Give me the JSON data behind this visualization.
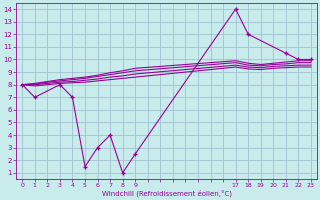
{
  "bg_color": "#c8ecec",
  "line_color": "#990099",
  "grid_color": "#99bbcc",
  "xlabel": "Windchill (Refroidissement éolien,°C)",
  "xtick_labels": [
    "0",
    "1",
    "2",
    "3",
    "4",
    "5",
    "6",
    "7",
    "8",
    "9",
    "",
    "",
    "",
    "",
    "",
    "",
    "",
    "17",
    "18",
    "19",
    "20",
    "21",
    "22",
    "23"
  ],
  "xtick_values": [
    0,
    1,
    2,
    3,
    4,
    5,
    6,
    7,
    8,
    9,
    10,
    11,
    12,
    13,
    14,
    15,
    16,
    17,
    18,
    19,
    20,
    21,
    22,
    23
  ],
  "yticks": [
    1,
    2,
    3,
    4,
    5,
    6,
    7,
    8,
    9,
    10,
    11,
    12,
    13,
    14
  ],
  "xlim": [
    -0.5,
    23.5
  ],
  "ylim": [
    0.5,
    14.5
  ],
  "line1_x": [
    0,
    1,
    3,
    4,
    5,
    6,
    7,
    8,
    9,
    17,
    18,
    21,
    22,
    23
  ],
  "line1_y": [
    8,
    7,
    8,
    7,
    1.5,
    3,
    4,
    1,
    2.5,
    14,
    12,
    10.5,
    10,
    10
  ],
  "line2_x": [
    0,
    1,
    2,
    3,
    4,
    5,
    6,
    7,
    8,
    9,
    17,
    18,
    19,
    20,
    21,
    22,
    23
  ],
  "line2_y": [
    8.0,
    7.9,
    8.0,
    8.1,
    8.15,
    8.2,
    8.3,
    8.4,
    8.5,
    8.6,
    9.4,
    9.25,
    9.2,
    9.3,
    9.35,
    9.4,
    9.4
  ],
  "line3_x": [
    0,
    1,
    2,
    3,
    4,
    5,
    6,
    7,
    8,
    9,
    17,
    18,
    19,
    20,
    21,
    22,
    23
  ],
  "line3_y": [
    8.0,
    8.0,
    8.1,
    8.2,
    8.25,
    8.35,
    8.45,
    8.6,
    8.7,
    8.85,
    9.55,
    9.4,
    9.35,
    9.45,
    9.5,
    9.55,
    9.55
  ],
  "line4_x": [
    0,
    1,
    2,
    3,
    4,
    5,
    6,
    7,
    8,
    9,
    17,
    18,
    19,
    20,
    21,
    22,
    23
  ],
  "line4_y": [
    8.0,
    8.05,
    8.2,
    8.3,
    8.4,
    8.5,
    8.65,
    8.8,
    8.95,
    9.1,
    9.75,
    9.55,
    9.5,
    9.6,
    9.65,
    9.75,
    9.75
  ],
  "line5_x": [
    0,
    1,
    2,
    3,
    4,
    5,
    6,
    7,
    8,
    9,
    17,
    18,
    19,
    20,
    21,
    22,
    23
  ],
  "line5_y": [
    8.0,
    8.1,
    8.25,
    8.4,
    8.5,
    8.6,
    8.75,
    8.95,
    9.1,
    9.3,
    9.9,
    9.7,
    9.6,
    9.7,
    9.8,
    9.9,
    9.9
  ]
}
